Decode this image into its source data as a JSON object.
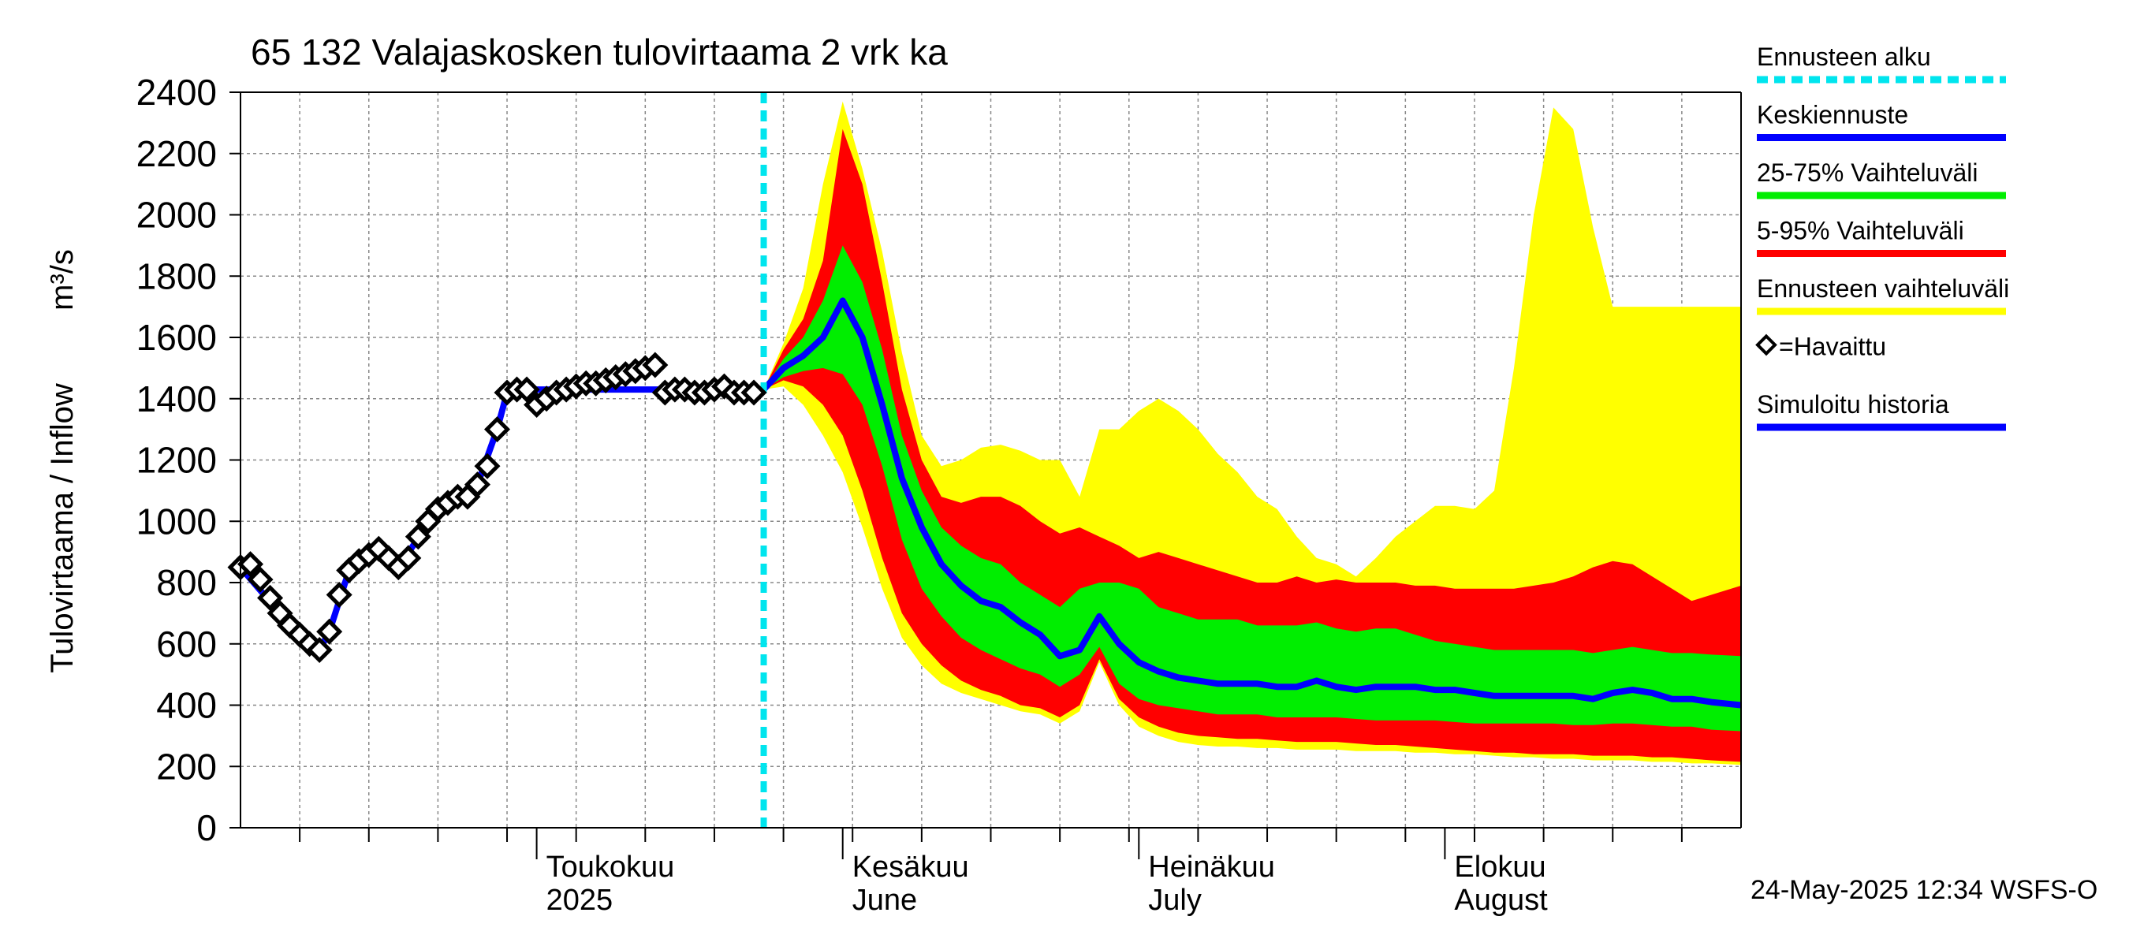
{
  "chart_data": {
    "type": "area",
    "title": "65 132 Valajaskosken tulovirtaama 2 vrk ka",
    "ylabel": "Tulovirtaama / Inflow",
    "yunit": "m³/s",
    "ylim": [
      0,
      2400
    ],
    "yticks": [
      0,
      200,
      400,
      600,
      800,
      1000,
      1200,
      1400,
      1600,
      1800,
      2000,
      2200,
      2400
    ],
    "xlim": [
      "2025-04-01",
      "2025-08-31"
    ],
    "grid": true,
    "month_labels": [
      {
        "date": "2025-05-01",
        "fi": "Toukokuu",
        "en": "2025"
      },
      {
        "date": "2025-06-01",
        "fi": "Kesäkuu",
        "en": "June"
      },
      {
        "date": "2025-07-01",
        "fi": "Heinäkuu",
        "en": "July"
      },
      {
        "date": "2025-08-01",
        "fi": "Elokuu",
        "en": "August"
      }
    ],
    "forecast_start": "2025-05-24",
    "timestamp": "24-May-2025 12:34 WSFS-O",
    "legend": {
      "placement": "right",
      "items": [
        {
          "label": "Ennusteen alku",
          "color": "#00e5ee",
          "style": "dashed"
        },
        {
          "label": "Keskiennuste",
          "color": "#0000ff",
          "style": "line"
        },
        {
          "label": "25-75% Vaihteluväli",
          "color": "#00ee00",
          "style": "line"
        },
        {
          "label": "5-95% Vaihteluväli",
          "color": "#ff0000",
          "style": "line"
        },
        {
          "label": "Ennusteen vaihteluväli",
          "color": "#ffff00",
          "style": "line"
        },
        {
          "label": "=Havaittu",
          "color": "#000000",
          "style": "marker"
        },
        {
          "label": "Simuloitu historia",
          "color": "#0000ff",
          "style": "line"
        }
      ]
    },
    "observed": {
      "name": "Havaittu",
      "x": [
        "2025-04-01",
        "2025-04-02",
        "2025-04-03",
        "2025-04-04",
        "2025-04-05",
        "2025-04-06",
        "2025-04-07",
        "2025-04-08",
        "2025-04-09",
        "2025-04-10",
        "2025-04-11",
        "2025-04-12",
        "2025-04-13",
        "2025-04-14",
        "2025-04-15",
        "2025-04-16",
        "2025-04-17",
        "2025-04-18",
        "2025-04-19",
        "2025-04-20",
        "2025-04-21",
        "2025-04-22",
        "2025-04-23",
        "2025-04-24",
        "2025-04-25",
        "2025-04-26",
        "2025-04-27",
        "2025-04-28",
        "2025-04-29",
        "2025-04-30",
        "2025-05-01",
        "2025-05-02",
        "2025-05-03",
        "2025-05-04",
        "2025-05-05",
        "2025-05-06",
        "2025-05-07",
        "2025-05-08",
        "2025-05-09",
        "2025-05-10",
        "2025-05-11",
        "2025-05-12",
        "2025-05-13",
        "2025-05-14",
        "2025-05-15",
        "2025-05-16",
        "2025-05-17",
        "2025-05-18",
        "2025-05-19",
        "2025-05-20",
        "2025-05-21",
        "2025-05-22",
        "2025-05-23"
      ],
      "y": [
        850,
        860,
        810,
        750,
        700,
        660,
        630,
        600,
        580,
        640,
        760,
        840,
        870,
        890,
        910,
        880,
        850,
        880,
        950,
        1000,
        1040,
        1060,
        1080,
        1080,
        1120,
        1180,
        1300,
        1420,
        1430,
        1430,
        1380,
        1400,
        1420,
        1430,
        1440,
        1450,
        1450,
        1460,
        1470,
        1480,
        1490,
        1500,
        1510,
        1420,
        1430,
        1430,
        1420,
        1420,
        1430,
        1440,
        1420,
        1420,
        1420
      ]
    },
    "simulated_history": {
      "name": "Simuloitu historia",
      "x": [
        "2025-04-01",
        "2025-04-05",
        "2025-04-09",
        "2025-04-10",
        "2025-04-12",
        "2025-04-15",
        "2025-04-17",
        "2025-04-21",
        "2025-04-25",
        "2025-04-27",
        "2025-04-28",
        "2025-04-30",
        "2025-05-01",
        "2025-05-03",
        "2025-05-06",
        "2025-05-09",
        "2025-05-12",
        "2025-05-15",
        "2025-05-18",
        "2025-05-20",
        "2025-05-23"
      ],
      "y": [
        850,
        700,
        580,
        640,
        840,
        910,
        850,
        1040,
        1120,
        1300,
        1420,
        1430,
        1430,
        1430,
        1430,
        1430,
        1430,
        1430,
        1430,
        1430,
        1430
      ]
    },
    "forecast": {
      "x": [
        "2025-05-24",
        "2025-05-26",
        "2025-05-28",
        "2025-05-30",
        "2025-06-01",
        "2025-06-03",
        "2025-06-05",
        "2025-06-07",
        "2025-06-09",
        "2025-06-11",
        "2025-06-13",
        "2025-06-15",
        "2025-06-17",
        "2025-06-19",
        "2025-06-21",
        "2025-06-23",
        "2025-06-25",
        "2025-06-27",
        "2025-06-29",
        "2025-07-01",
        "2025-07-03",
        "2025-07-05",
        "2025-07-07",
        "2025-07-09",
        "2025-07-11",
        "2025-07-13",
        "2025-07-15",
        "2025-07-17",
        "2025-07-19",
        "2025-07-21",
        "2025-07-23",
        "2025-07-25",
        "2025-07-27",
        "2025-07-29",
        "2025-07-31",
        "2025-08-02",
        "2025-08-04",
        "2025-08-06",
        "2025-08-08",
        "2025-08-10",
        "2025-08-12",
        "2025-08-14",
        "2025-08-16",
        "2025-08-18",
        "2025-08-20",
        "2025-08-22",
        "2025-08-24",
        "2025-08-26",
        "2025-08-28",
        "2025-08-31"
      ],
      "median": [
        1430,
        1500,
        1540,
        1600,
        1720,
        1600,
        1380,
        1140,
        980,
        860,
        790,
        740,
        720,
        670,
        630,
        560,
        580,
        690,
        600,
        540,
        510,
        490,
        480,
        470,
        470,
        470,
        460,
        460,
        480,
        460,
        450,
        460,
        460,
        460,
        450,
        450,
        440,
        430,
        430,
        430,
        430,
        430,
        420,
        440,
        450,
        440,
        420,
        420,
        410,
        400
      ],
      "p25": [
        1430,
        1470,
        1490,
        1500,
        1480,
        1380,
        1180,
        940,
        780,
        690,
        620,
        580,
        550,
        520,
        500,
        460,
        500,
        590,
        470,
        420,
        400,
        390,
        380,
        370,
        370,
        370,
        360,
        360,
        360,
        360,
        355,
        350,
        350,
        350,
        350,
        345,
        340,
        340,
        340,
        340,
        340,
        335,
        335,
        340,
        340,
        335,
        330,
        330,
        320,
        315
      ],
      "p75": [
        1430,
        1530,
        1600,
        1720,
        1900,
        1780,
        1560,
        1280,
        1100,
        980,
        920,
        880,
        860,
        800,
        760,
        720,
        780,
        800,
        800,
        780,
        720,
        700,
        680,
        680,
        680,
        660,
        660,
        660,
        670,
        650,
        640,
        650,
        650,
        630,
        610,
        600,
        590,
        580,
        580,
        580,
        580,
        580,
        570,
        580,
        590,
        580,
        570,
        570,
        565,
        560
      ],
      "p05": [
        1430,
        1460,
        1440,
        1380,
        1280,
        1100,
        880,
        700,
        600,
        530,
        480,
        450,
        430,
        400,
        390,
        360,
        400,
        550,
        420,
        360,
        330,
        310,
        300,
        295,
        290,
        290,
        285,
        280,
        280,
        280,
        275,
        270,
        270,
        265,
        260,
        255,
        250,
        245,
        245,
        240,
        240,
        240,
        235,
        235,
        235,
        230,
        230,
        225,
        220,
        215
      ],
      "p95": [
        1430,
        1560,
        1660,
        1850,
        2280,
        2100,
        1780,
        1430,
        1200,
        1080,
        1060,
        1080,
        1080,
        1050,
        1000,
        960,
        980,
        950,
        920,
        880,
        900,
        880,
        860,
        840,
        820,
        800,
        800,
        820,
        800,
        810,
        800,
        800,
        800,
        790,
        790,
        780,
        780,
        780,
        780,
        790,
        800,
        820,
        850,
        870,
        860,
        820,
        780,
        740,
        760,
        790
      ],
      "min": [
        1430,
        1440,
        1380,
        1280,
        1160,
        980,
        780,
        620,
        530,
        470,
        440,
        420,
        400,
        380,
        370,
        340,
        380,
        540,
        400,
        330,
        300,
        280,
        270,
        265,
        265,
        260,
        260,
        255,
        255,
        255,
        250,
        250,
        250,
        245,
        245,
        240,
        240,
        235,
        230,
        230,
        225,
        225,
        220,
        220,
        220,
        215,
        215,
        210,
        210,
        205
      ],
      "max": [
        1430,
        1580,
        1760,
        2100,
        2370,
        2150,
        1880,
        1550,
        1280,
        1180,
        1200,
        1240,
        1250,
        1230,
        1200,
        1200,
        1080,
        1300,
        1300,
        1360,
        1400,
        1360,
        1300,
        1220,
        1160,
        1080,
        1040,
        950,
        880,
        860,
        820,
        880,
        950,
        1000,
        1050,
        1050,
        1040,
        1100,
        1500,
        2000,
        2350,
        2280,
        1960,
        1700,
        1700,
        1700,
        1700,
        1700,
        1700,
        1700
      ]
    }
  }
}
